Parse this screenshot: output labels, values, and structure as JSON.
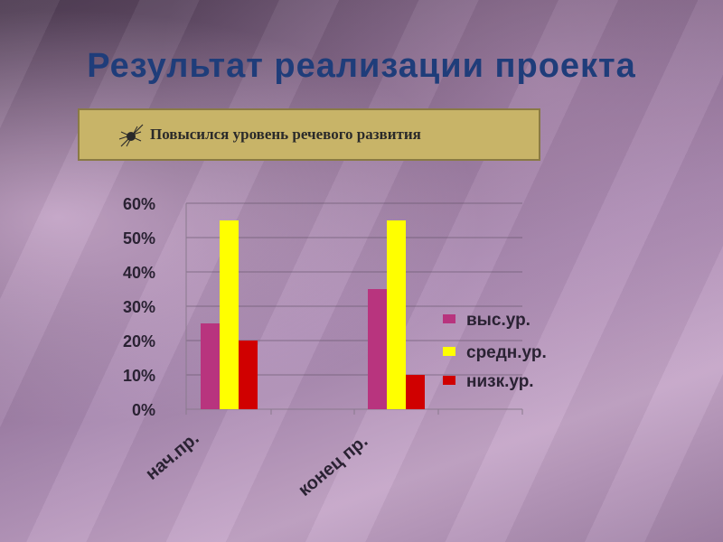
{
  "slide": {
    "title": "Результат реализации проекта",
    "banner_text": "Повысился уровень речевого развития",
    "banner_icon": "burst-star-icon",
    "colors": {
      "title": "#1f3d7a",
      "banner": "#c8b468"
    }
  },
  "chart_data": {
    "type": "bar",
    "categories": [
      "нач.пр.",
      "конец пр."
    ],
    "series": [
      {
        "name": "выс.ур.",
        "values": [
          25,
          35
        ],
        "color": "#b8347e"
      },
      {
        "name": "средн.ур.",
        "values": [
          55,
          55
        ],
        "color": "#ffff00"
      },
      {
        "name": "низк.ур.",
        "values": [
          20,
          10
        ],
        "color": "#d00000"
      }
    ],
    "yticks": [
      "0%",
      "10%",
      "20%",
      "30%",
      "40%",
      "50%",
      "60%"
    ],
    "ylim": [
      0,
      60
    ],
    "unit": "%",
    "grid": true,
    "legend_position": "right"
  }
}
